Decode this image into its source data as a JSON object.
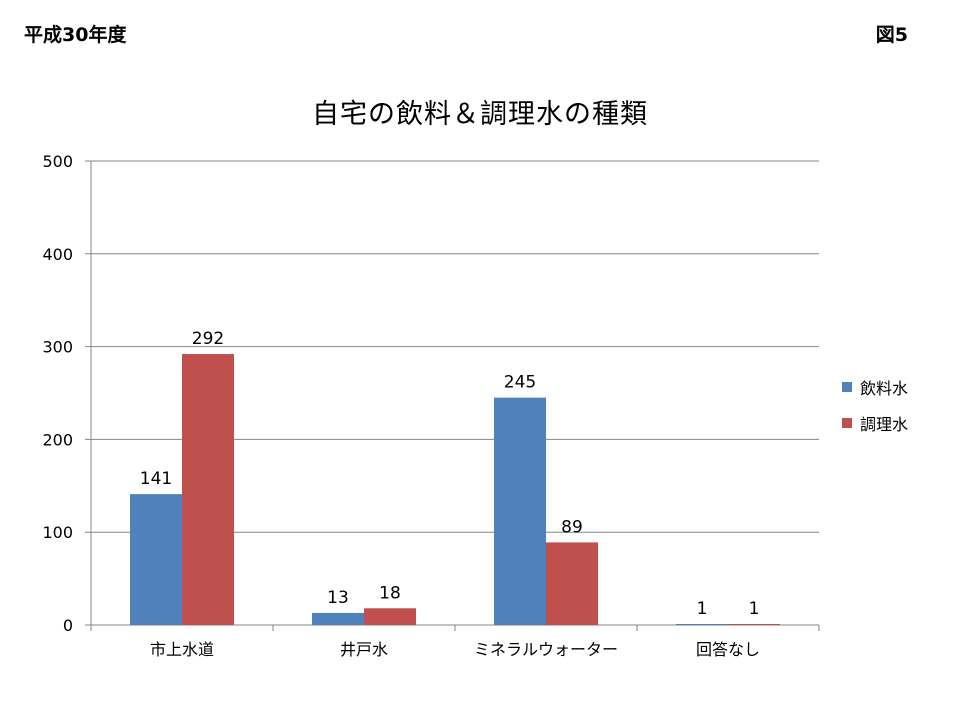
{
  "header": {
    "year_label": "平成30年度",
    "figure_label": "図5"
  },
  "colors": {
    "drinking": "#4F81BD",
    "cooking": "#C0504D",
    "axis": "#868686",
    "grid": "#868686"
  },
  "chart_data": {
    "type": "bar",
    "title": "自宅の飲料＆調理水の種類",
    "xlabel": "",
    "ylabel": "",
    "categories": [
      "市上水道",
      "井戸水",
      "ミネラルウォーター",
      "回答なし"
    ],
    "series": [
      {
        "name": "飲料水",
        "values": [
          141,
          13,
          245,
          1
        ]
      },
      {
        "name": "調理水",
        "values": [
          292,
          18,
          89,
          1
        ]
      }
    ],
    "ylim": [
      0,
      500
    ],
    "yticks": [
      0,
      100,
      200,
      300,
      400,
      500
    ],
    "grid": true,
    "data_labels": true,
    "legend_position": "right"
  }
}
